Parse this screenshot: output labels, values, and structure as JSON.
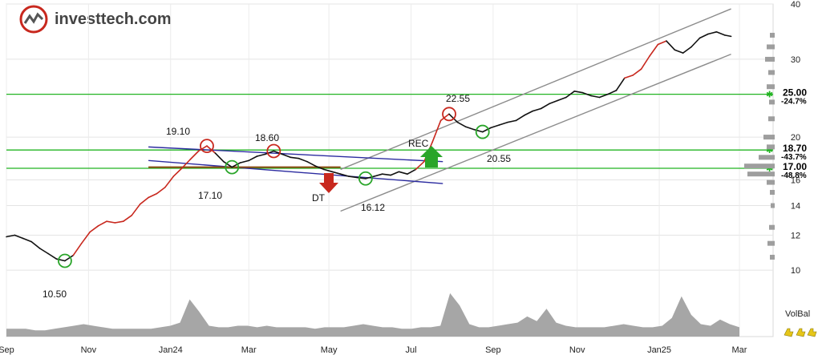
{
  "brand": {
    "name": "investtech.com"
  },
  "chart_data": {
    "type": "line",
    "y_scale": "log",
    "ylim": [
      9.4,
      40
    ],
    "y_ticks": [
      "10",
      "12",
      "14",
      "16",
      "20",
      "30",
      "40"
    ],
    "x_ticks": [
      "Sep",
      "Nov",
      "Jan24",
      "Mar",
      "May",
      "Jul",
      "Sep",
      "Nov",
      "Jan25",
      "Mar"
    ],
    "grid": true,
    "series": [
      {
        "points": [
          [
            0,
            11.9
          ],
          [
            4,
            12.0
          ],
          [
            8,
            11.8
          ],
          [
            12,
            11.6
          ],
          [
            16,
            11.2
          ],
          [
            20,
            10.9
          ],
          [
            24,
            10.6
          ],
          [
            28,
            10.5
          ],
          [
            32,
            10.8
          ],
          [
            36,
            11.5
          ],
          [
            40,
            12.2
          ],
          [
            44,
            12.6
          ],
          [
            48,
            12.9
          ],
          [
            52,
            12.8
          ],
          [
            56,
            12.9
          ],
          [
            60,
            13.3
          ],
          [
            64,
            14.1
          ],
          [
            68,
            14.6
          ],
          [
            72,
            14.9
          ],
          [
            76,
            15.4
          ],
          [
            80,
            16.3
          ],
          [
            84,
            17.0
          ],
          [
            88,
            17.8
          ],
          [
            92,
            18.6
          ],
          [
            96,
            19.1
          ],
          [
            100,
            18.4
          ],
          [
            104,
            17.6
          ],
          [
            108,
            17.1
          ],
          [
            112,
            17.5
          ],
          [
            116,
            17.7
          ],
          [
            120,
            18.1
          ],
          [
            124,
            18.3
          ],
          [
            128,
            18.6
          ],
          [
            132,
            18.3
          ],
          [
            136,
            18.0
          ],
          [
            140,
            17.9
          ],
          [
            144,
            17.6
          ],
          [
            148,
            17.2
          ],
          [
            152,
            16.9
          ],
          [
            156,
            16.7
          ],
          [
            160,
            16.5
          ],
          [
            164,
            16.3
          ],
          [
            168,
            16.2
          ],
          [
            172,
            16.12
          ],
          [
            176,
            16.3
          ],
          [
            180,
            16.5
          ],
          [
            184,
            16.4
          ],
          [
            188,
            16.7
          ],
          [
            192,
            16.5
          ],
          [
            196,
            16.9
          ],
          [
            200,
            17.6
          ],
          [
            204,
            19.5
          ],
          [
            208,
            21.8
          ],
          [
            212,
            22.55
          ],
          [
            216,
            21.6
          ],
          [
            220,
            21.1
          ],
          [
            224,
            20.8
          ],
          [
            228,
            20.55
          ],
          [
            232,
            21.0
          ],
          [
            236,
            21.3
          ],
          [
            240,
            21.6
          ],
          [
            244,
            21.8
          ],
          [
            248,
            22.4
          ],
          [
            252,
            22.9
          ],
          [
            256,
            23.2
          ],
          [
            260,
            23.8
          ],
          [
            264,
            24.2
          ],
          [
            268,
            24.6
          ],
          [
            272,
            25.4
          ],
          [
            276,
            25.2
          ],
          [
            280,
            24.8
          ],
          [
            284,
            24.6
          ],
          [
            288,
            25.0
          ],
          [
            292,
            25.5
          ],
          [
            296,
            27.2
          ],
          [
            300,
            27.6
          ],
          [
            304,
            28.5
          ],
          [
            308,
            30.5
          ],
          [
            312,
            32.4
          ],
          [
            316,
            33.0
          ],
          [
            320,
            31.5
          ],
          [
            324,
            31.0
          ],
          [
            328,
            32.0
          ],
          [
            332,
            33.5
          ],
          [
            336,
            34.2
          ],
          [
            340,
            34.6
          ],
          [
            344,
            34.0
          ],
          [
            347,
            33.8
          ]
        ]
      }
    ],
    "volume_label": "VolBal",
    "volume": [
      5,
      5,
      5,
      4,
      4,
      5,
      6,
      7,
      8,
      7,
      6,
      5,
      5,
      5,
      5,
      5,
      6,
      7,
      9,
      24,
      16,
      7,
      6,
      6,
      7,
      7,
      6,
      7,
      6,
      6,
      6,
      6,
      5,
      6,
      6,
      6,
      7,
      8,
      7,
      6,
      6,
      5,
      5,
      6,
      6,
      7,
      28,
      20,
      8,
      6,
      6,
      7,
      8,
      9,
      13,
      10,
      18,
      9,
      7,
      6,
      6,
      6,
      6,
      7,
      8,
      7,
      6,
      6,
      7,
      12,
      26,
      14,
      8,
      7,
      11,
      8,
      6
    ]
  },
  "levels": [
    {
      "value": 25.0,
      "label": "25.00",
      "pct": "-24.7%"
    },
    {
      "value": 18.7,
      "label": "18.70",
      "pct": "-43.7%"
    },
    {
      "value": 17.0,
      "label": "17.00",
      "pct": "-48.8%"
    }
  ],
  "annotations": [
    {
      "text": "10.50"
    },
    {
      "text": "19.10"
    },
    {
      "text": "17.10"
    },
    {
      "text": "18.60"
    },
    {
      "text": "16.12"
    },
    {
      "text": "22.55"
    },
    {
      "text": "20.55"
    },
    {
      "text": "REC"
    },
    {
      "text": "DT"
    }
  ],
  "colors": {
    "price_up": "#c8281e",
    "price": "#111111",
    "support": "#22b422",
    "channel_up": "#8c8c8c",
    "channel_down": "#2c2ca0",
    "buy_signal": "#2aa52a",
    "sell_signal": "#c8281e",
    "volume": "#a6a6a6"
  }
}
